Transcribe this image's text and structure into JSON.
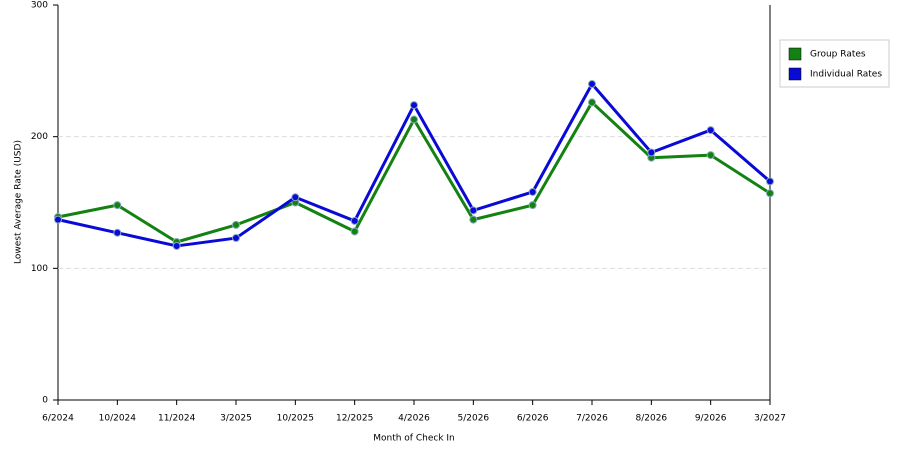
{
  "chart_data": {
    "type": "line",
    "x_label": "Month of Check In",
    "y_label": "Lowest Average Rate (USD)",
    "categories": [
      "6/2024",
      "10/2024",
      "11/2024",
      "3/2025",
      "10/2025",
      "12/2025",
      "4/2026",
      "5/2026",
      "6/2026",
      "7/2026",
      "8/2026",
      "9/2026",
      "3/2027"
    ],
    "series": [
      {
        "name": "Group Rates",
        "color": "#138213",
        "values": [
          139,
          148,
          120,
          133,
          150,
          128,
          213,
          137,
          148,
          226,
          184,
          186,
          157
        ]
      },
      {
        "name": "Individual Rates",
        "color": "#0a0ad6",
        "values": [
          137,
          127,
          117,
          123,
          154,
          136,
          224,
          144,
          158,
          240,
          188,
          205,
          166
        ]
      }
    ],
    "ylim": [
      0,
      300
    ],
    "yticks": [
      0,
      100,
      200,
      300
    ],
    "grid": true,
    "legend": "right"
  }
}
